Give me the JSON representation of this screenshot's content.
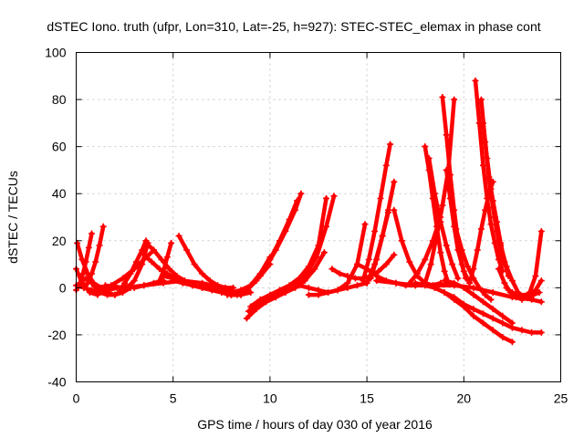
{
  "chart_data": {
    "type": "scatter",
    "title": "dSTEC Iono. truth (ufpr, Lon=310, Lat=-25, h=927): STEC-STEC_elemax in phase cont",
    "xlabel": "GPS time / hours of day 030 of year 2016",
    "ylabel": "dSTEC  / TECUs",
    "xlim": [
      0,
      25
    ],
    "ylim": [
      -40,
      100
    ],
    "xticks": [
      0,
      5,
      10,
      15,
      20,
      25
    ],
    "yticks": [
      -40,
      -20,
      0,
      20,
      40,
      60,
      80,
      100
    ],
    "xtick_labels": [
      "0",
      "5",
      "10",
      "15",
      "20",
      "25"
    ],
    "ytick_labels": [
      "-40",
      "-20",
      "0",
      "20",
      "40",
      "60",
      "80",
      "100"
    ],
    "grid": true,
    "marker": "plus",
    "color": "#ff0000",
    "series": [
      {
        "x": [
          0.0,
          0.3,
          0.7,
          1.1,
          1.5
        ],
        "y": [
          8,
          2,
          -2,
          -3,
          -1
        ]
      },
      {
        "x": [
          0.0,
          0.2,
          0.5,
          0.8,
          1.2
        ],
        "y": [
          -1,
          2,
          4,
          2,
          -2
        ]
      },
      {
        "x": [
          0.05,
          0.3,
          0.6,
          0.9,
          1.3,
          1.7,
          2.1
        ],
        "y": [
          19,
          12,
          6,
          2,
          0,
          -1,
          0
        ]
      },
      {
        "x": [
          0.4,
          0.6,
          0.8,
          1.0,
          1.2,
          1.4
        ],
        "y": [
          0,
          2,
          6,
          11,
          18,
          26
        ]
      },
      {
        "x": [
          0.2,
          0.35,
          0.5,
          0.65,
          0.8
        ],
        "y": [
          2,
          6,
          11,
          17,
          23
        ]
      },
      {
        "x": [
          0.0,
          0.4,
          0.8,
          1.2,
          1.6,
          2.0,
          2.4,
          2.8
        ],
        "y": [
          1,
          0,
          -1,
          -2,
          -3,
          -3,
          -2,
          0
        ]
      },
      {
        "x": [
          1.5,
          2.0,
          2.5,
          3.0,
          3.4,
          3.7
        ],
        "y": [
          -2,
          -3,
          -1,
          3,
          10,
          19
        ]
      },
      {
        "x": [
          1.2,
          1.8,
          2.4,
          3.0,
          3.5,
          4.0
        ],
        "y": [
          -1,
          1,
          4,
          8,
          12,
          16
        ]
      },
      {
        "x": [
          2.2,
          2.5,
          2.8,
          3.1,
          3.4,
          3.6
        ],
        "y": [
          -2,
          2,
          6,
          11,
          16,
          20
        ]
      },
      {
        "x": [
          3.6,
          4.0,
          4.4,
          4.8,
          5.2,
          5.6
        ],
        "y": [
          19,
          16,
          12,
          8,
          5,
          3
        ]
      },
      {
        "x": [
          3.5,
          3.9,
          4.3,
          4.7,
          5.1,
          5.5
        ],
        "y": [
          14,
          11,
          8,
          6,
          4,
          3
        ]
      },
      {
        "x": [
          2.5,
          3.0,
          3.5,
          4.0,
          4.5
        ],
        "y": [
          1,
          0,
          1,
          2,
          3
        ]
      },
      {
        "x": [
          4.3,
          4.5,
          4.7,
          4.9
        ],
        "y": [
          3,
          7,
          13,
          19
        ]
      },
      {
        "x": [
          1.5,
          2.5,
          3.5,
          4.5,
          5.5,
          6.5,
          7.5,
          8.0
        ],
        "y": [
          1,
          0,
          1,
          2,
          3,
          2,
          0,
          -1
        ]
      },
      {
        "x": [
          5.3,
          5.7,
          6.1,
          6.5,
          6.9,
          7.3,
          7.7,
          8.1
        ],
        "y": [
          22,
          16,
          10,
          6,
          3,
          1,
          0,
          0
        ]
      },
      {
        "x": [
          4.5,
          5.0,
          5.5,
          6.0,
          6.5,
          7.0,
          7.5,
          8.0,
          8.5
        ],
        "y": [
          5,
          4,
          3,
          1,
          0,
          -1,
          -2,
          -3,
          -3
        ]
      },
      {
        "x": [
          5.0,
          5.5,
          6.0,
          6.5,
          7.0,
          7.5,
          8.0,
          8.5,
          9.0
        ],
        "y": [
          3,
          2,
          1,
          0,
          -1,
          -2,
          -3,
          -3,
          -2
        ]
      },
      {
        "x": [
          6.5,
          7.0,
          7.5,
          8.0,
          8.5,
          9.0,
          9.5,
          10.0
        ],
        "y": [
          1,
          0,
          -1,
          -2,
          -1,
          1,
          5,
          10
        ]
      },
      {
        "x": [
          7.5,
          8.0,
          8.5,
          9.0,
          9.5,
          10.0
        ],
        "y": [
          -2,
          -3,
          -2,
          1,
          6,
          13
        ]
      },
      {
        "x": [
          7.8,
          8.3,
          8.8,
          9.3,
          9.8,
          10.3,
          10.8,
          11.3,
          11.6
        ],
        "y": [
          -3,
          -3,
          -1,
          3,
          9,
          16,
          24,
          33,
          40
        ]
      },
      {
        "x": [
          8.0,
          8.5,
          9.0,
          9.5,
          10.0,
          10.5,
          11.0,
          11.4
        ],
        "y": [
          -3,
          -2,
          1,
          6,
          12,
          20,
          29,
          37
        ]
      },
      {
        "x": [
          8.8,
          9.3,
          9.8,
          10.3,
          10.8,
          11.3,
          11.8,
          12.3,
          12.8
        ],
        "y": [
          -13,
          -9,
          -6,
          -4,
          -2,
          0,
          3,
          8,
          15
        ]
      },
      {
        "x": [
          8.9,
          9.4,
          9.9,
          10.4,
          10.9,
          11.4,
          11.9,
          12.4,
          12.9,
          13.3
        ],
        "y": [
          -10,
          -7,
          -5,
          -3,
          -1,
          2,
          6,
          13,
          26,
          39
        ]
      },
      {
        "x": [
          9.0,
          9.5,
          10.0,
          10.5,
          11.0,
          11.5,
          12.0,
          12.5,
          12.9
        ],
        "y": [
          -8,
          -5,
          -3,
          -1,
          1,
          4,
          9,
          18,
          38
        ]
      },
      {
        "x": [
          11.5,
          12.0,
          12.5,
          13.0,
          13.5,
          14.0,
          14.5,
          15.0
        ],
        "y": [
          1,
          0,
          -1,
          -2,
          -1,
          0,
          1,
          2
        ]
      },
      {
        "x": [
          12.0,
          12.5,
          13.0,
          13.5,
          14.0,
          14.5,
          14.9
        ],
        "y": [
          -3,
          -3,
          -2,
          -1,
          2,
          10,
          27
        ]
      },
      {
        "x": [
          13.2,
          13.6,
          14.0,
          14.4,
          14.8,
          15.2,
          15.6,
          16.0,
          16.4
        ],
        "y": [
          8,
          6,
          5,
          4,
          4,
          5,
          7,
          10,
          14
        ]
      },
      {
        "x": [
          14.5,
          15.0,
          15.5,
          16.0,
          16.5,
          17.0,
          17.5,
          18.0
        ],
        "y": [
          10,
          8,
          5,
          3,
          2,
          1,
          1,
          2
        ]
      },
      {
        "x": [
          14.8,
          15.1,
          15.4,
          15.7,
          16.0,
          16.2
        ],
        "y": [
          3,
          12,
          24,
          38,
          52,
          61
        ]
      },
      {
        "x": [
          15.0,
          15.4,
          15.8,
          16.1,
          16.4
        ],
        "y": [
          2,
          10,
          22,
          33,
          45
        ]
      },
      {
        "x": [
          15.2,
          15.5,
          15.8,
          16.1
        ],
        "y": [
          4,
          12,
          22,
          32
        ]
      },
      {
        "x": [
          16.4,
          16.8,
          17.2,
          17.6,
          18.0,
          18.4,
          18.8
        ],
        "y": [
          33,
          20,
          11,
          5,
          2,
          1,
          2
        ]
      },
      {
        "x": [
          15.5,
          16.5,
          17.5,
          18.5,
          19.5,
          20.5,
          21.5,
          22.5,
          23.5,
          24.0
        ],
        "y": [
          3,
          2,
          1,
          1,
          1,
          0,
          -2,
          -4,
          -5,
          -6
        ]
      },
      {
        "x": [
          17.5,
          18.0,
          18.5,
          19.0,
          19.5,
          20.0,
          20.5,
          21.0,
          21.5,
          22.0,
          22.5
        ],
        "y": [
          2,
          1,
          0,
          -2,
          -5,
          -8,
          -12,
          -15,
          -18,
          -21,
          -23
        ]
      },
      {
        "x": [
          18.0,
          18.5,
          19.0,
          19.5,
          20.0,
          20.5,
          21.0,
          21.5,
          22.0,
          22.5,
          23.0,
          23.5,
          24.0
        ],
        "y": [
          2,
          0,
          -2,
          -4,
          -7,
          -9,
          -11,
          -13,
          -15,
          -17,
          -18,
          -19,
          -19
        ]
      },
      {
        "x": [
          17.2,
          17.6,
          18.0,
          18.4,
          18.8
        ],
        "y": [
          2,
          6,
          12,
          20,
          30
        ]
      },
      {
        "x": [
          18.0,
          18.2,
          18.4,
          18.6,
          18.8,
          19.0,
          19.2
        ],
        "y": [
          60,
          50,
          38,
          26,
          15,
          7,
          2
        ]
      },
      {
        "x": [
          18.2,
          18.5,
          18.8,
          19.1,
          19.4,
          19.7
        ],
        "y": [
          55,
          40,
          28,
          18,
          10,
          4
        ]
      },
      {
        "x": [
          18.0,
          18.3,
          18.6,
          18.9,
          19.2,
          19.5
        ],
        "y": [
          2,
          10,
          22,
          35,
          50,
          80
        ]
      },
      {
        "x": [
          18.9,
          19.1,
          19.3,
          19.5,
          19.7,
          19.9,
          20.1
        ],
        "y": [
          81,
          65,
          48,
          33,
          20,
          10,
          4
        ]
      },
      {
        "x": [
          19.1,
          19.3,
          19.5,
          19.7,
          20.0,
          20.3
        ],
        "y": [
          50,
          38,
          26,
          16,
          7,
          2
        ]
      },
      {
        "x": [
          19.6,
          19.9,
          20.2,
          20.5,
          20.8,
          21.1,
          21.4
        ],
        "y": [
          25,
          16,
          9,
          4,
          0,
          -3,
          -5
        ]
      },
      {
        "x": [
          20.6,
          20.8,
          21.0,
          21.2,
          21.4,
          21.6,
          21.8,
          22.0
        ],
        "y": [
          88,
          70,
          52,
          38,
          27,
          19,
          12,
          7
        ]
      },
      {
        "x": [
          20.9,
          21.1,
          21.3,
          21.5,
          21.7,
          21.9,
          22.1
        ],
        "y": [
          80,
          62,
          46,
          34,
          24,
          16,
          10
        ]
      },
      {
        "x": [
          21.0,
          21.2,
          21.4,
          21.6,
          21.8,
          22.0
        ],
        "y": [
          70,
          55,
          42,
          30,
          20,
          12
        ]
      },
      {
        "x": [
          21.3,
          21.5,
          21.7,
          21.9,
          22.1,
          22.3
        ],
        "y": [
          47,
          37,
          28,
          19,
          11,
          5
        ]
      },
      {
        "x": [
          20.3,
          20.5,
          20.7,
          20.9,
          21.1,
          21.3,
          21.5
        ],
        "y": [
          2,
          8,
          16,
          25,
          33,
          40,
          45
        ]
      },
      {
        "x": [
          21.6,
          21.9,
          22.2,
          22.5,
          22.8,
          23.1
        ],
        "y": [
          30,
          18,
          9,
          3,
          -2,
          -4
        ]
      },
      {
        "x": [
          21.8,
          22.1,
          22.4,
          22.7,
          23.0,
          23.3,
          23.6,
          23.9
        ],
        "y": [
          8,
          2,
          -2,
          -4,
          -5,
          -4,
          -3,
          -2
        ]
      },
      {
        "x": [
          22.2,
          22.6,
          23.0,
          23.4,
          23.7,
          24.0
        ],
        "y": [
          0,
          -3,
          -4,
          -2,
          5,
          24
        ]
      },
      {
        "x": [
          22.5,
          22.9,
          23.3,
          23.7,
          24.0
        ],
        "y": [
          -2,
          -3,
          -3,
          -1,
          3
        ]
      },
      {
        "x": [
          19.0,
          19.5,
          20.0,
          20.5,
          21.0,
          21.5,
          22.0,
          22.5
        ],
        "y": [
          3,
          2,
          0,
          -3,
          -6,
          -9,
          -12,
          -15
        ]
      }
    ]
  }
}
